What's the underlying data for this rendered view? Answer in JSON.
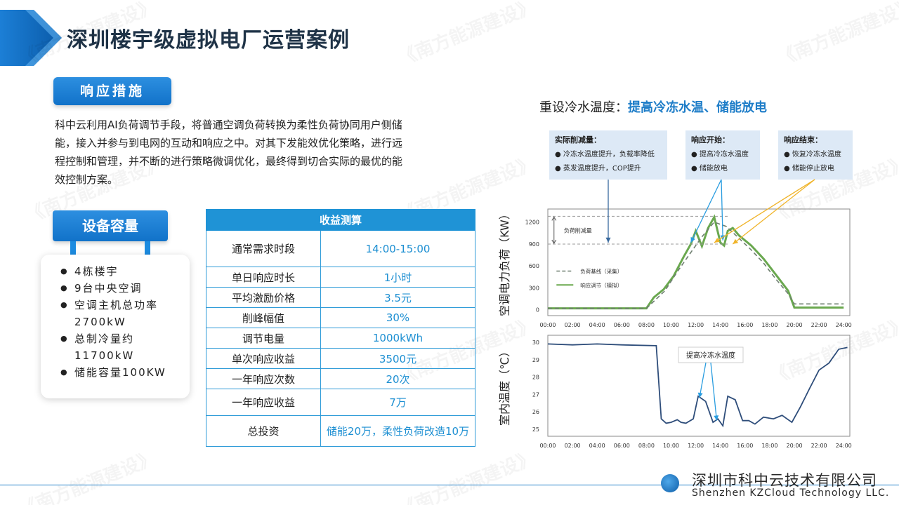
{
  "page": {
    "title": "深圳楼宇级虚拟电厂运营案例",
    "watermark": "《南方能源建设》"
  },
  "measures": {
    "label": "响应措施",
    "text": "科中云利用AI负荷调节手段，将普通空调负荷转换为柔性负荷协同用户侧储能，接入并参与到电网的互动和响应之中。对其下发能效优化策略，进行远程控制和管理，并不断的进行策略微调优化，最终得到切合实际的最优的能效控制方案。"
  },
  "equipment": {
    "label": "设备容量",
    "items": [
      "4栋楼宇",
      "9台中央空调",
      "空调主机总功率2700kW",
      "总制冷量约11700kW",
      "储能容量100KW"
    ]
  },
  "revenue_table": {
    "header": "收益测算",
    "rows": [
      {
        "k": "通常需求时段",
        "v": "14:00-15:00"
      },
      {
        "k": "单日响应时长",
        "v": "1小时"
      },
      {
        "k": "平均激励价格",
        "v": "3.5元"
      },
      {
        "k": "削峰幅值",
        "v": "30%"
      },
      {
        "k": "调节电量",
        "v": "1000kWh"
      },
      {
        "k": "单次响应收益",
        "v": "3500元"
      },
      {
        "k": "一年响应次数",
        "v": "20次"
      },
      {
        "k": "一年响应收益",
        "v": "7万"
      },
      {
        "k": "总投资",
        "v": "储能20万，柔性负荷改造10万"
      }
    ]
  },
  "right": {
    "title_prefix": "重设冷水温度：",
    "title_highlight": "提高冷冻水温、储能放电"
  },
  "notes": {
    "reduction": {
      "title": "实际削减量：",
      "items": [
        "● 冷冻水温度提升，负载率降低",
        "● 蒸发温度提升，COP提升"
      ]
    },
    "start": {
      "title": "响应开始：",
      "items": [
        "● 提高冷冻水温度",
        "● 储能放电"
      ]
    },
    "end": {
      "title": "响应结束：",
      "items": [
        "● 恢复冷冻水温度",
        "● 储能停止放电"
      ]
    }
  },
  "chart_data": [
    {
      "type": "line",
      "ylabel": "空调电力负荷（KW）",
      "xlim": [
        0,
        24.5
      ],
      "ylim": [
        -80,
        1380
      ],
      "x_ticks": [
        "00:00",
        "02:00",
        "04:00",
        "06:00",
        "08:00",
        "10:00",
        "12:00",
        "14:00",
        "16:00",
        "18:00",
        "20:00",
        "22:00",
        "24:00"
      ],
      "y_ticks": [
        0,
        300,
        600,
        900,
        1200
      ],
      "annotation": "负荷削减量",
      "annotation_range": [
        900,
        1280
      ],
      "legend": [
        "负荷基线（采集）",
        "响应调节（模拟）"
      ],
      "legend_colors": [
        "#6e7f70",
        "#6aa84f"
      ],
      "series": [
        {
          "name": "负荷基线（采集）",
          "style": "dashed",
          "x": [
            0,
            8,
            8.5,
            9.5,
            10.5,
            11.5,
            12.5,
            13.5,
            14.5,
            15.5,
            16.5,
            17.5,
            18.5,
            19.5,
            20,
            24
          ],
          "y": [
            20,
            20,
            100,
            260,
            520,
            760,
            1000,
            1200,
            1140,
            980,
            820,
            640,
            420,
            220,
            80,
            80
          ]
        },
        {
          "name": "响应调节（模拟）",
          "style": "solid",
          "x": [
            0,
            8,
            8.6,
            9.4,
            10.2,
            11,
            11.6,
            12,
            12.5,
            13,
            13.5,
            14,
            14.3,
            14.6,
            15,
            15.5,
            16.5,
            17.5,
            18.5,
            19.5,
            20,
            24
          ],
          "y": [
            20,
            20,
            170,
            280,
            460,
            720,
            900,
            1080,
            870,
            1120,
            1270,
            920,
            880,
            1080,
            1120,
            1020,
            880,
            700,
            480,
            260,
            30,
            30
          ]
        }
      ]
    },
    {
      "type": "line",
      "ylabel": "室内温度（℃）",
      "xlim": [
        0,
        24.5
      ],
      "ylim": [
        24.6,
        30.4
      ],
      "x_ticks": [
        "00:00",
        "02:00",
        "04:00",
        "06:00",
        "08:00",
        "10:00",
        "12:00",
        "14:00",
        "16:00",
        "18:00",
        "20:00",
        "22:00",
        "24:00"
      ],
      "y_ticks": [
        25,
        26,
        27,
        28,
        29,
        30
      ],
      "annotation": "提高冷冻水温度",
      "series": [
        {
          "name": "室内温度",
          "x": [
            0,
            2,
            4,
            6,
            8.8,
            9.2,
            9.6,
            10,
            10.5,
            10.8,
            11.2,
            11.8,
            12.2,
            12.8,
            13.4,
            13.8,
            14.2,
            14.6,
            15.2,
            15.8,
            16.3,
            16.8,
            17.5,
            18.3,
            19,
            19.8,
            20.5,
            21.2,
            22,
            22.8,
            23.6,
            24.3
          ],
          "y": [
            29.9,
            29.85,
            29.9,
            29.85,
            29.8,
            25.6,
            25.35,
            25.4,
            25.55,
            25.4,
            25.35,
            25.6,
            26.9,
            26.6,
            25.4,
            25.6,
            25.2,
            26.9,
            26.7,
            25.5,
            25.5,
            25.3,
            25.7,
            25.6,
            25.8,
            25.4,
            26.3,
            27.3,
            28.4,
            28.8,
            29.6,
            29.7
          ]
        }
      ]
    }
  ]
}
